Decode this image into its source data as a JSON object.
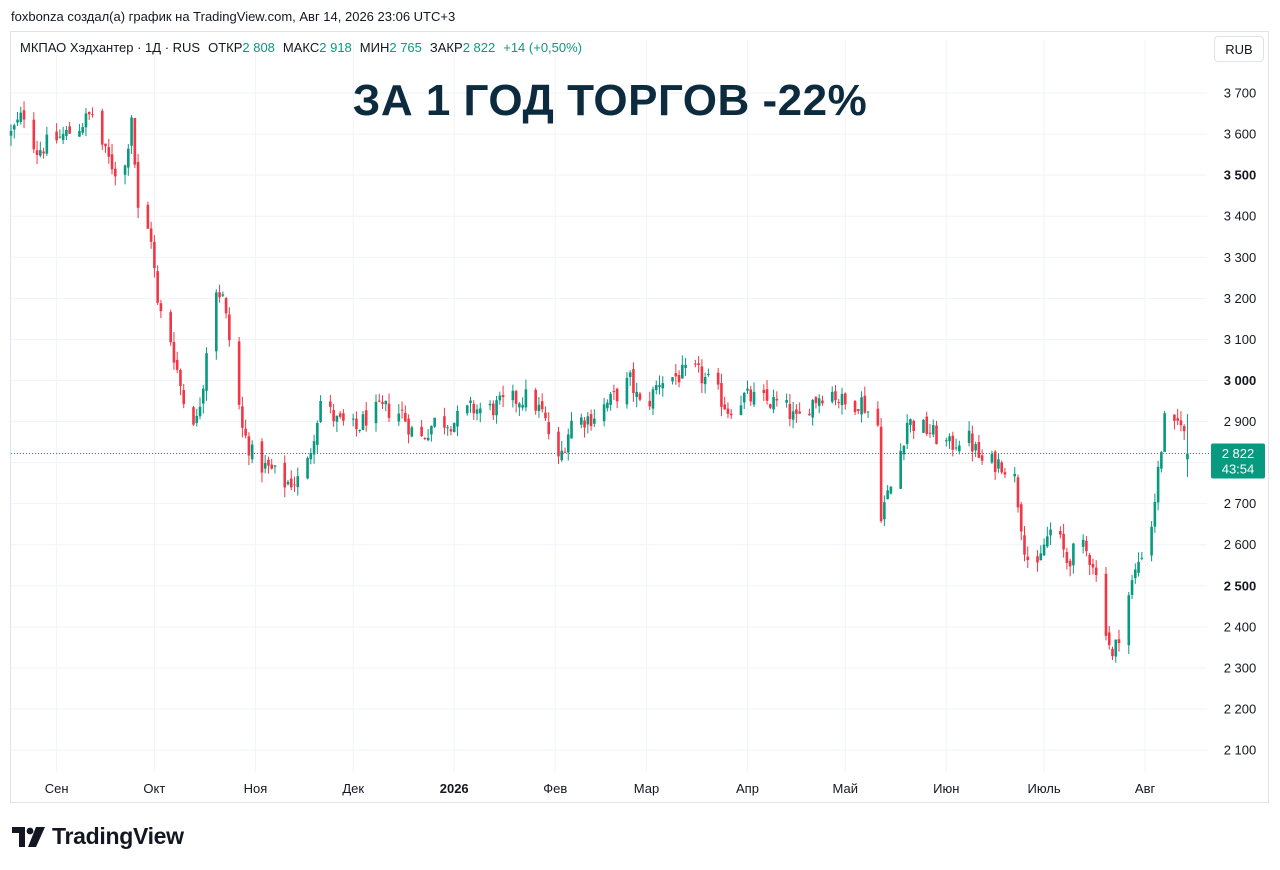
{
  "header": {
    "attribution": "foxbonza создал(а) график на TradingView.com, Авг 14, 2026 23:06 UTC+3"
  },
  "legend": {
    "symbol": "МКПАО Хэдхантер · 1Д · RUS",
    "open_label": "ОТКР",
    "open_value": "2 808",
    "high_label": "МАКС",
    "high_value": "2 918",
    "low_label": "МИН",
    "low_value": "2 765",
    "close_label": "ЗАКР",
    "close_value": "2 822",
    "change": "+14 (+0,50%)"
  },
  "currency_button": "RUB",
  "headline": "ЗА 1 ГОД ТОРГОВ -22%",
  "price_badge": {
    "price": "2 822",
    "countdown": "43:54"
  },
  "logo": {
    "text": "TradingView",
    "icon": "tradingview-logo-icon"
  },
  "colors": {
    "up": "#089981",
    "down": "#f23645",
    "grid": "#f0f3fa",
    "headline": "#0d2b3e"
  },
  "chart_data": {
    "type": "candlestick",
    "ylim": [
      2040,
      3780
    ],
    "y_ticks": [
      2100,
      2200,
      2300,
      2400,
      2500,
      2600,
      2700,
      2800,
      2900,
      3000,
      3100,
      3200,
      3300,
      3400,
      3500,
      3600,
      3700
    ],
    "y_tick_labels": [
      "2 100",
      "2 200",
      "2 300",
      "2 400",
      "2 500",
      "2 600",
      "2 700",
      "2 800",
      "2 900",
      "3 000",
      "3 100",
      "3 200",
      "3 300",
      "3 400",
      "3 500",
      "3 600",
      "3 700"
    ],
    "bold_ticks": [
      2500,
      3000,
      3500
    ],
    "x_start": "2025-08-18",
    "x_end": "2026-08-20",
    "x_ticks": [
      {
        "date": "2025-09-01",
        "label": "Сен",
        "bold": false
      },
      {
        "date": "2025-10-01",
        "label": "Окт",
        "bold": false
      },
      {
        "date": "2025-11-01",
        "label": "Ноя",
        "bold": false
      },
      {
        "date": "2025-12-01",
        "label": "Дек",
        "bold": false
      },
      {
        "date": "2026-01-01",
        "label": "2026",
        "bold": true
      },
      {
        "date": "2026-02-01",
        "label": "Фев",
        "bold": false
      },
      {
        "date": "2026-03-01",
        "label": "Мар",
        "bold": false
      },
      {
        "date": "2026-04-01",
        "label": "Апр",
        "bold": false
      },
      {
        "date": "2026-05-01",
        "label": "Май",
        "bold": false
      },
      {
        "date": "2026-06-01",
        "label": "Июн",
        "bold": false
      },
      {
        "date": "2026-07-01",
        "label": "Июль",
        "bold": false
      },
      {
        "date": "2026-08-01",
        "label": "Авг",
        "bold": false
      }
    ],
    "last_price": 2822,
    "series_path": [
      [
        "2025-08-18",
        3600
      ],
      [
        "2025-08-22",
        3650
      ],
      [
        "2025-08-26",
        3560
      ],
      [
        "2025-08-30",
        3580
      ],
      [
        "2025-09-04",
        3600
      ],
      [
        "2025-09-08",
        3620
      ],
      [
        "2025-09-12",
        3650
      ],
      [
        "2025-09-16",
        3550
      ],
      [
        "2025-09-20",
        3500
      ],
      [
        "2025-09-22",
        3520
      ],
      [
        "2025-09-24",
        3650
      ],
      [
        "2025-09-26",
        3410
      ],
      [
        "2025-09-30",
        3350
      ],
      [
        "2025-10-02",
        3180
      ],
      [
        "2025-10-06",
        3100
      ],
      [
        "2025-10-10",
        2950
      ],
      [
        "2025-10-14",
        2900
      ],
      [
        "2025-10-16",
        3000
      ],
      [
        "2025-10-19",
        3240
      ],
      [
        "2025-10-22",
        3200
      ],
      [
        "2025-10-25",
        3050
      ],
      [
        "2025-10-28",
        2880
      ],
      [
        "2025-11-01",
        2800
      ],
      [
        "2025-11-06",
        2780
      ],
      [
        "2025-11-10",
        2750
      ],
      [
        "2025-11-16",
        2760
      ],
      [
        "2025-11-21",
        2950
      ],
      [
        "2025-11-26",
        2900
      ],
      [
        "2025-12-02",
        2880
      ],
      [
        "2025-12-06",
        2920
      ],
      [
        "2025-12-11",
        2930
      ],
      [
        "2025-12-16",
        2920
      ],
      [
        "2025-12-21",
        2850
      ],
      [
        "2025-12-26",
        2900
      ],
      [
        "2026-01-01",
        2900
      ],
      [
        "2026-01-06",
        2930
      ],
      [
        "2026-01-12",
        2930
      ],
      [
        "2026-01-18",
        2950
      ],
      [
        "2026-01-24",
        2960
      ],
      [
        "2026-01-28",
        2920
      ],
      [
        "2026-02-02",
        2800
      ],
      [
        "2026-02-06",
        2900
      ],
      [
        "2026-02-12",
        2910
      ],
      [
        "2026-02-18",
        2950
      ],
      [
        "2026-02-24",
        3000
      ],
      [
        "2026-02-28",
        2920
      ],
      [
        "2026-03-05",
        3000
      ],
      [
        "2026-03-10",
        3010
      ],
      [
        "2026-03-16",
        3020
      ],
      [
        "2026-03-21",
        2990
      ],
      [
        "2026-03-26",
        2930
      ],
      [
        "2026-03-31",
        2960
      ],
      [
        "2026-04-06",
        2950
      ],
      [
        "2026-04-12",
        2940
      ],
      [
        "2026-04-16",
        2900
      ],
      [
        "2026-04-21",
        2950
      ],
      [
        "2026-04-26",
        2980
      ],
      [
        "2026-05-01",
        2940
      ],
      [
        "2026-05-06",
        2950
      ],
      [
        "2026-05-11",
        2890
      ],
      [
        "2026-05-12",
        2680
      ],
      [
        "2026-05-16",
        2760
      ],
      [
        "2026-05-20",
        2900
      ],
      [
        "2026-05-26",
        2880
      ],
      [
        "2026-06-02",
        2840
      ],
      [
        "2026-06-07",
        2870
      ],
      [
        "2026-06-12",
        2800
      ],
      [
        "2026-06-18",
        2800
      ],
      [
        "2026-06-22",
        2760
      ],
      [
        "2026-06-25",
        2600
      ],
      [
        "2026-06-28",
        2500
      ],
      [
        "2026-07-01",
        2600
      ],
      [
        "2026-07-04",
        2650
      ],
      [
        "2026-07-08",
        2560
      ],
      [
        "2026-07-12",
        2600
      ],
      [
        "2026-07-16",
        2560
      ],
      [
        "2026-07-20",
        2400
      ],
      [
        "2026-07-22",
        2320
      ],
      [
        "2026-07-26",
        2450
      ],
      [
        "2026-07-30",
        2560
      ],
      [
        "2026-08-03",
        2650
      ],
      [
        "2026-08-07",
        2900
      ],
      [
        "2026-08-10",
        2880
      ],
      [
        "2026-08-12",
        2910
      ],
      [
        "2026-08-14",
        2822
      ]
    ]
  }
}
